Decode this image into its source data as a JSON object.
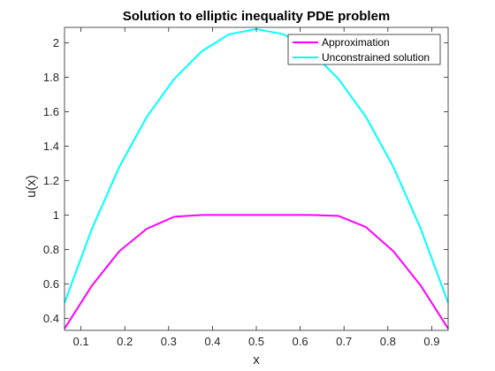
{
  "chart_data": {
    "type": "line",
    "title": "Solution to elliptic inequality PDE problem",
    "xlabel": "x",
    "ylabel": "u(x)",
    "xlim": [
      0.0625,
      0.9375
    ],
    "ylim": [
      0.33,
      2.09
    ],
    "xticks": [
      "0.1",
      "0.2",
      "0.3",
      "0.4",
      "0.5",
      "0.6",
      "0.7",
      "0.8",
      "0.9"
    ],
    "yticks": [
      "0.4",
      "0.6",
      "0.8",
      "1",
      "1.2",
      "1.4",
      "1.6",
      "1.8",
      "2"
    ],
    "grid": false,
    "legend_position": "top-right",
    "x": [
      0.0625,
      0.125,
      0.1875,
      0.25,
      0.3125,
      0.375,
      0.4375,
      0.5,
      0.5625,
      0.625,
      0.6875,
      0.75,
      0.8125,
      0.875,
      0.9375
    ],
    "series": [
      {
        "name": "Approximation",
        "color": "#ff00ff",
        "values": [
          0.34,
          0.59,
          0.79,
          0.92,
          0.99,
          1.0,
          1.0,
          1.0,
          1.0,
          1.0,
          0.995,
          0.93,
          0.79,
          0.59,
          0.34
        ]
      },
      {
        "name": "Unconstrained solution",
        "color": "#00ffff",
        "values": [
          0.49,
          0.92,
          1.28,
          1.57,
          1.79,
          1.95,
          2.05,
          2.08,
          2.05,
          1.95,
          1.79,
          1.57,
          1.28,
          0.92,
          0.49
        ]
      }
    ]
  }
}
